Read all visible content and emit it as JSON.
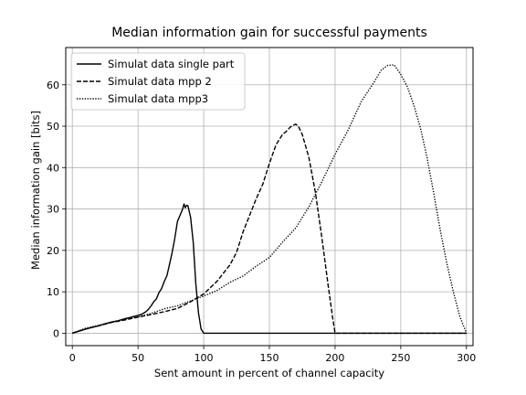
{
  "chart_data": {
    "type": "line",
    "title": "Median information gain for successful payments",
    "xlabel": "Sent amount in percent of channel capacity",
    "ylabel": "Median information gain [bits]",
    "xlim": [
      -5,
      305
    ],
    "ylim": [
      -3,
      69
    ],
    "xticks": [
      0,
      50,
      100,
      150,
      200,
      250,
      300
    ],
    "yticks": [
      0,
      10,
      20,
      30,
      40,
      50,
      60
    ],
    "grid": true,
    "legend_position": "top-left",
    "series": [
      {
        "name": "Simulat data single part",
        "style": "solid",
        "x": [
          0,
          5,
          10,
          15,
          20,
          25,
          30,
          35,
          40,
          45,
          50,
          53,
          56,
          58,
          60,
          62,
          64,
          66,
          68,
          70,
          72,
          74,
          76,
          78,
          80,
          82,
          84,
          85,
          86,
          87,
          88,
          90,
          92,
          94,
          96,
          98,
          100,
          120,
          150,
          200,
          250,
          300
        ],
        "y": [
          0,
          0.5,
          1,
          1.4,
          1.8,
          2.3,
          2.7,
          3.0,
          3.5,
          3.9,
          4.3,
          4.6,
          5.2,
          5.8,
          6.6,
          7.6,
          8.3,
          9.8,
          10.8,
          12.5,
          13.9,
          16.7,
          19.5,
          22.9,
          27.0,
          28.5,
          30.0,
          31.2,
          30.3,
          30.9,
          30.8,
          28.0,
          22.0,
          12.0,
          5.0,
          1.0,
          0,
          0,
          0,
          0,
          0,
          0
        ]
      },
      {
        "name": "Simulat data mpp 2",
        "style": "dashed",
        "x": [
          0,
          10,
          20,
          30,
          40,
          50,
          60,
          70,
          80,
          90,
          100,
          110,
          120,
          125,
          130,
          135,
          140,
          145,
          150,
          155,
          160,
          163,
          166,
          168,
          170,
          172,
          175,
          180,
          185,
          190,
          195,
          198,
          200,
          250,
          300
        ],
        "y": [
          0,
          1,
          1.8,
          2.6,
          3.2,
          3.9,
          4.5,
          5.2,
          6.0,
          7.6,
          9.5,
          12.5,
          16.5,
          19.5,
          24.5,
          28.5,
          32.5,
          36.0,
          41.0,
          45.5,
          48.0,
          48.8,
          49.8,
          50.2,
          50.5,
          50.0,
          48.0,
          42.5,
          34.0,
          23.0,
          11.0,
          4.0,
          0,
          0,
          0
        ]
      },
      {
        "name": "Simulat data mpp3",
        "style": "dotted",
        "x": [
          0,
          10,
          20,
          30,
          40,
          50,
          60,
          70,
          80,
          90,
          100,
          110,
          120,
          130,
          140,
          150,
          160,
          170,
          180,
          190,
          200,
          210,
          220,
          230,
          235,
          240,
          245,
          250,
          255,
          260,
          265,
          270,
          275,
          280,
          285,
          290,
          295,
          300
        ],
        "y": [
          0,
          1.2,
          1.9,
          2.7,
          3.4,
          3.9,
          4.8,
          5.9,
          6.6,
          7.8,
          9.0,
          10.3,
          12.3,
          13.8,
          16.2,
          18.3,
          22.0,
          25.4,
          30.5,
          36.6,
          43.2,
          49.1,
          56.0,
          60.8,
          63.5,
          64.7,
          64.8,
          62.5,
          59.5,
          55.0,
          49.5,
          42.5,
          34.0,
          25.0,
          17.0,
          10.0,
          4.0,
          0
        ]
      }
    ]
  }
}
